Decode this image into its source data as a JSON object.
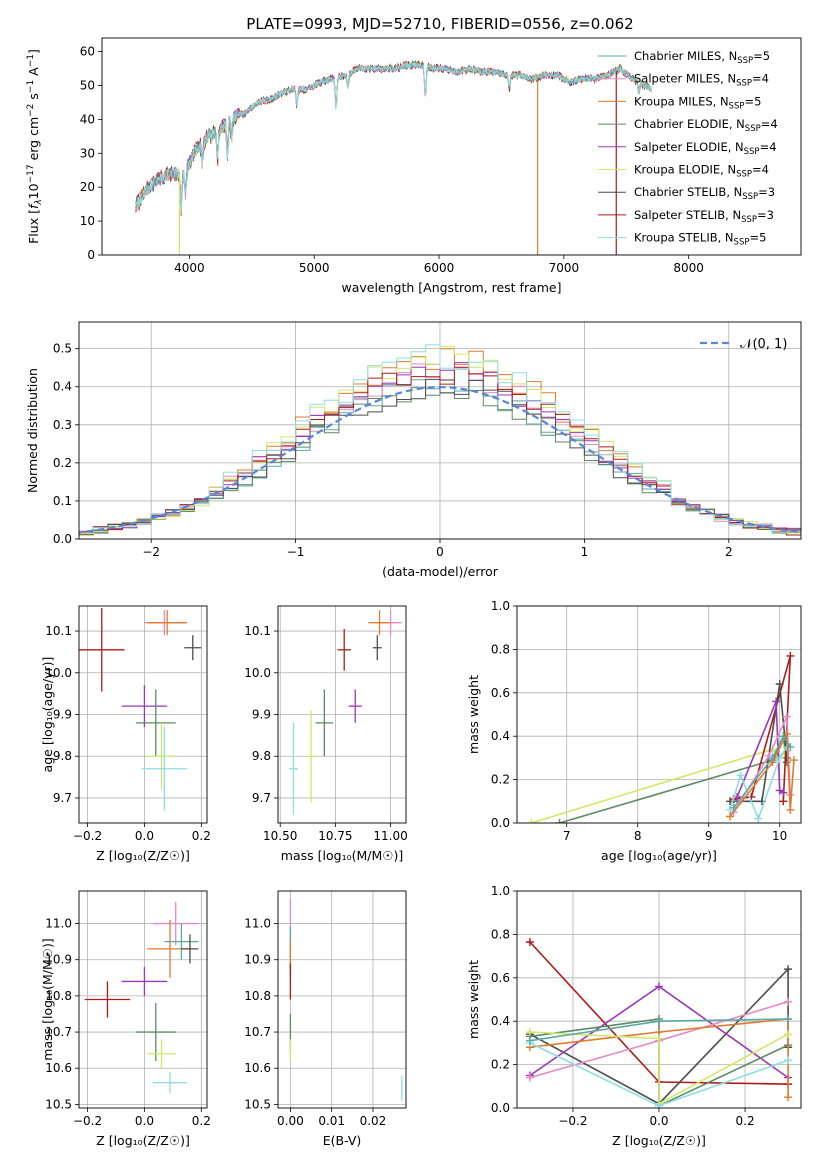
{
  "figure": {
    "title": "PLATE=0993, MJD=52710, FIBERID=0556, z=0.062"
  },
  "colors": {
    "chabrier_miles": "#5aa9a4",
    "salpeter_miles": "#e58ac4",
    "kroupa_miles": "#e07b2e",
    "chabrier_elodie": "#5c8a63",
    "salpeter_elodie": "#9b36b8",
    "kroupa_elodie": "#cfe86a",
    "chabrier_stelib": "#4d4d4d",
    "salpeter_stelib": "#b01a1a",
    "kroupa_stelib": "#8fdde0",
    "gauss": "#5b86d8",
    "grid": "#b0b0b0"
  },
  "chart_data": [
    {
      "id": "spectrum",
      "type": "line",
      "xlabel": "wavelength [Angstrom, rest frame]",
      "ylabel": "Flux [f_λ 10^-17 erg cm^-2 s^-1 A^-1]",
      "xlim": [
        3300,
        8900
      ],
      "ylim": [
        0,
        64
      ],
      "xticks": [
        4000,
        5000,
        6000,
        7000,
        8000
      ],
      "yticks": [
        0,
        10,
        20,
        30,
        40,
        50,
        60
      ],
      "grid": false,
      "legend_position": "top-right",
      "legend": [
        {
          "label": "Chabrier MILES, N",
          "sub": "SSP",
          "suffix": "=5",
          "color_key": "chabrier_miles"
        },
        {
          "label": "Salpeter MILES, N",
          "sub": "SSP",
          "suffix": "=4",
          "color_key": "salpeter_miles"
        },
        {
          "label": "Kroupa MILES, N",
          "sub": "SSP",
          "suffix": "=5",
          "color_key": "kroupa_miles"
        },
        {
          "label": "Chabrier ELODIE, N",
          "sub": "SSP",
          "suffix": "=4",
          "color_key": "chabrier_elodie"
        },
        {
          "label": "Salpeter ELODIE, N",
          "sub": "SSP",
          "suffix": "=4",
          "color_key": "salpeter_elodie"
        },
        {
          "label": "Kroupa ELODIE, N",
          "sub": "SSP",
          "suffix": "=4",
          "color_key": "kroupa_elodie"
        },
        {
          "label": "Chabrier STELIB, N",
          "sub": "SSP",
          "suffix": "=3",
          "color_key": "chabrier_stelib"
        },
        {
          "label": "Salpeter STELIB, N",
          "sub": "SSP",
          "suffix": "=3",
          "color_key": "salpeter_stelib"
        },
        {
          "label": "Kroupa STELIB, N",
          "sub": "SSP",
          "suffix": "=5",
          "color_key": "kroupa_stelib"
        }
      ],
      "continuum": [
        [
          3570,
          14
        ],
        [
          3650,
          19
        ],
        [
          3750,
          22
        ],
        [
          3850,
          24
        ],
        [
          3950,
          24
        ],
        [
          4050,
          31
        ],
        [
          4150,
          35
        ],
        [
          4250,
          37
        ],
        [
          4350,
          41
        ],
        [
          4450,
          42
        ],
        [
          4550,
          45
        ],
        [
          4650,
          46
        ],
        [
          4750,
          48
        ],
        [
          4850,
          49
        ],
        [
          4950,
          49
        ],
        [
          5050,
          51
        ],
        [
          5150,
          52
        ],
        [
          5250,
          53
        ],
        [
          5350,
          55
        ],
        [
          5450,
          55
        ],
        [
          5550,
          55
        ],
        [
          5650,
          55
        ],
        [
          5750,
          56
        ],
        [
          5850,
          56
        ],
        [
          5950,
          55
        ],
        [
          6050,
          55
        ],
        [
          6150,
          54
        ],
        [
          6250,
          55
        ],
        [
          6350,
          54
        ],
        [
          6450,
          54
        ],
        [
          6550,
          53
        ],
        [
          6650,
          53
        ],
        [
          6750,
          52
        ],
        [
          6850,
          53
        ],
        [
          6950,
          53
        ],
        [
          7050,
          51
        ],
        [
          7150,
          52
        ],
        [
          7250,
          52
        ],
        [
          7350,
          53
        ],
        [
          7450,
          55
        ],
        [
          7550,
          52
        ],
        [
          7650,
          50
        ],
        [
          7700,
          49
        ]
      ],
      "absorption_features": [
        [
          3934,
          -10
        ],
        [
          3969,
          -8
        ],
        [
          4102,
          -6
        ],
        [
          4226,
          -8
        ],
        [
          4305,
          -10
        ],
        [
          4340,
          -6
        ],
        [
          4861,
          -5
        ],
        [
          5175,
          -9
        ],
        [
          5270,
          -4
        ],
        [
          5890,
          -9
        ],
        [
          6563,
          -4
        ],
        [
          7600,
          -3
        ]
      ],
      "model_dropouts": [
        {
          "x": 3920,
          "color_key": "kroupa_elodie"
        },
        {
          "x": 6790,
          "color_key": "kroupa_miles"
        },
        {
          "x": 7420,
          "color_key": "salpeter_stelib"
        }
      ]
    },
    {
      "id": "residual-histogram",
      "type": "bar",
      "xlabel": "(data-model)/error",
      "ylabel": "Normed distribution",
      "xlim": [
        -2.5,
        2.5
      ],
      "ylim": [
        0,
        0.57
      ],
      "xticks": [
        -2,
        -1,
        0,
        1,
        2
      ],
      "yticks": [
        0.0,
        0.1,
        0.2,
        0.3,
        0.4,
        0.5
      ],
      "grid": true,
      "legend_position": "top-right",
      "legend": [
        {
          "label": "𝒩(0, 1)",
          "color_key": "gauss"
        }
      ],
      "bin_edges_start": -2.5,
      "bin_width": 0.1,
      "bin_count": 50,
      "series_keys": [
        "chabrier_miles",
        "salpeter_miles",
        "kroupa_miles",
        "chabrier_elodie",
        "salpeter_elodie",
        "kroupa_elodie",
        "chabrier_stelib",
        "salpeter_stelib",
        "kroupa_stelib"
      ]
    },
    {
      "id": "age-vs-Z",
      "type": "scatter",
      "xlabel": "Z [log₁₀(Z/Z☉)]",
      "ylabel": "age  [log₁₀(age/yr)]",
      "xlim": [
        -0.23,
        0.22
      ],
      "ylim": [
        9.64,
        10.16
      ],
      "xticks": [
        -0.2,
        0.0,
        0.2
      ],
      "yticks": [
        9.7,
        9.8,
        9.9,
        10.0,
        10.1
      ],
      "grid": true,
      "points": [
        {
          "x": 0.07,
          "y": 10.12,
          "xerr": 0.07,
          "yerr": 0.03,
          "color_key": "salpeter_miles"
        },
        {
          "x": 0.08,
          "y": 10.12,
          "xerr": 0.07,
          "yerr": 0.03,
          "color_key": "kroupa_miles"
        },
        {
          "x": 0.17,
          "y": 10.06,
          "xerr": 0.03,
          "yerr": 0.03,
          "color_key": "chabrier_stelib"
        },
        {
          "x": -0.15,
          "y": 10.055,
          "xerr": 0.08,
          "yerr": 0.1,
          "color_key": "salpeter_stelib"
        },
        {
          "x": 0.0,
          "y": 9.92,
          "xerr": 0.08,
          "yerr": 0.05,
          "color_key": "salpeter_elodie"
        },
        {
          "x": 0.04,
          "y": 9.88,
          "xerr": 0.07,
          "yerr": 0.08,
          "color_key": "chabrier_elodie"
        },
        {
          "x": 0.06,
          "y": 9.8,
          "xerr": 0.05,
          "yerr": 0.08,
          "color_key": "kroupa_elodie"
        },
        {
          "x": 0.07,
          "y": 9.77,
          "xerr": 0.08,
          "yerr": 0.1,
          "color_key": "kroupa_stelib"
        }
      ]
    },
    {
      "id": "age-vs-mass",
      "type": "scatter",
      "xlabel": "mass [log₁₀(M/M☉)]",
      "ylabel": "",
      "xlim": [
        10.49,
        11.07
      ],
      "ylim": [
        9.64,
        10.16
      ],
      "xticks": [
        10.5,
        10.75,
        11.0
      ],
      "yticks": [
        9.7,
        9.8,
        9.9,
        10.0,
        10.1
      ],
      "grid": true,
      "points": [
        {
          "x": 11.0,
          "y": 10.12,
          "xerr": 0.05,
          "yerr": 0.03,
          "color_key": "salpeter_miles"
        },
        {
          "x": 10.95,
          "y": 10.12,
          "xerr": 0.05,
          "yerr": 0.03,
          "color_key": "kroupa_miles"
        },
        {
          "x": 10.94,
          "y": 10.06,
          "xerr": 0.02,
          "yerr": 0.03,
          "color_key": "chabrier_stelib"
        },
        {
          "x": 10.79,
          "y": 10.055,
          "xerr": 0.03,
          "yerr": 0.05,
          "color_key": "salpeter_stelib"
        },
        {
          "x": 10.84,
          "y": 9.92,
          "xerr": 0.03,
          "yerr": 0.04,
          "color_key": "salpeter_elodie"
        },
        {
          "x": 10.7,
          "y": 9.88,
          "xerr": 0.04,
          "yerr": 0.08,
          "color_key": "chabrier_elodie"
        },
        {
          "x": 10.64,
          "y": 9.8,
          "xerr": 0.02,
          "yerr": 0.11,
          "color_key": "kroupa_elodie"
        },
        {
          "x": 10.56,
          "y": 9.77,
          "xerr": 0.02,
          "yerr": 0.11,
          "color_key": "kroupa_stelib"
        }
      ]
    },
    {
      "id": "mass-vs-Z",
      "type": "scatter",
      "xlabel": "Z [log₁₀(Z/Z☉)]",
      "ylabel": "mass [log₁₀(M/M☉)]",
      "xlim": [
        -0.23,
        0.22
      ],
      "ylim": [
        10.49,
        11.09
      ],
      "xticks": [
        -0.2,
        0.0,
        0.2
      ],
      "yticks": [
        10.5,
        10.6,
        10.7,
        10.8,
        10.9,
        11.0
      ],
      "grid": true,
      "points": [
        {
          "x": 0.11,
          "y": 11.0,
          "xerr": 0.08,
          "yerr": 0.06,
          "color_key": "salpeter_miles"
        },
        {
          "x": 0.09,
          "y": 10.93,
          "xerr": 0.08,
          "yerr": 0.08,
          "color_key": "kroupa_miles"
        },
        {
          "x": 0.13,
          "y": 10.95,
          "xerr": 0.06,
          "yerr": 0.05,
          "color_key": "chabrier_miles"
        },
        {
          "x": 0.16,
          "y": 10.93,
          "xerr": 0.03,
          "yerr": 0.04,
          "color_key": "chabrier_stelib"
        },
        {
          "x": -0.13,
          "y": 10.79,
          "xerr": 0.08,
          "yerr": 0.05,
          "color_key": "salpeter_stelib"
        },
        {
          "x": 0.0,
          "y": 10.84,
          "xerr": 0.08,
          "yerr": 0.04,
          "color_key": "salpeter_elodie"
        },
        {
          "x": 0.04,
          "y": 10.7,
          "xerr": 0.07,
          "yerr": 0.08,
          "color_key": "chabrier_elodie"
        },
        {
          "x": 0.06,
          "y": 10.64,
          "xerr": 0.05,
          "yerr": 0.04,
          "color_key": "kroupa_elodie"
        },
        {
          "x": 0.09,
          "y": 10.56,
          "xerr": 0.06,
          "yerr": 0.03,
          "color_key": "kroupa_stelib"
        }
      ]
    },
    {
      "id": "mass-vs-ebv",
      "type": "scatter",
      "xlabel": "E(B-V)",
      "ylabel": "",
      "xlim": [
        -0.003,
        0.028
      ],
      "ylim": [
        10.49,
        11.09
      ],
      "xticks": [
        0.0,
        0.01,
        0.02
      ],
      "yticks": [
        10.5,
        10.6,
        10.7,
        10.8,
        10.9,
        11.0
      ],
      "grid": true,
      "points": [
        {
          "x": 0.0,
          "y": 11.0,
          "xerr": 0.0,
          "yerr": 0.07,
          "color_key": "salpeter_miles"
        },
        {
          "x": 0.0,
          "y": 10.93,
          "xerr": 0.0,
          "yerr": 0.06,
          "color_key": "chabrier_miles"
        },
        {
          "x": 0.0,
          "y": 10.9,
          "xerr": 0.0,
          "yerr": 0.05,
          "color_key": "kroupa_miles"
        },
        {
          "x": 0.0,
          "y": 10.84,
          "xerr": 0.0,
          "yerr": 0.05,
          "color_key": "salpeter_stelib"
        },
        {
          "x": 0.0,
          "y": 10.7,
          "xerr": 0.0,
          "yerr": 0.05,
          "color_key": "chabrier_elodie"
        },
        {
          "x": 0.0,
          "y": 10.65,
          "xerr": 0.0,
          "yerr": 0.03,
          "color_key": "kroupa_elodie"
        },
        {
          "x": 0.027,
          "y": 10.545,
          "xerr": 0.0,
          "yerr": 0.035,
          "color_key": "kroupa_stelib"
        }
      ]
    },
    {
      "id": "mass-weight-vs-age",
      "type": "line",
      "xlabel": "age  [log₁₀(age/yr)]",
      "ylabel": "mass weight",
      "xlim": [
        6.3,
        10.3
      ],
      "ylim": [
        0,
        1.0
      ],
      "xticks": [
        7,
        8,
        9,
        10
      ],
      "yticks": [
        0.0,
        0.2,
        0.4,
        0.6,
        0.8,
        1.0
      ],
      "grid": true,
      "series": [
        {
          "color_key": "kroupa_elodie",
          "x": [
            6.5,
            9.9,
            10.0,
            10.1
          ],
          "y": [
            0.0,
            0.34,
            0.3,
            0.33
          ]
        },
        {
          "color_key": "chabrier_elodie",
          "x": [
            6.9,
            9.9,
            10.05,
            10.1
          ],
          "y": [
            0.0,
            0.29,
            0.4,
            0.28
          ]
        },
        {
          "color_key": "salpeter_stelib",
          "x": [
            9.35,
            9.6,
            10.15,
            10.05
          ],
          "y": [
            0.11,
            0.12,
            0.77,
            0.1
          ]
        },
        {
          "color_key": "chabrier_stelib",
          "x": [
            9.3,
            9.75,
            10.0,
            10.1
          ],
          "y": [
            0.1,
            0.1,
            0.64,
            0.3
          ]
        },
        {
          "color_key": "salpeter_elodie",
          "x": [
            9.4,
            9.95,
            10.0,
            10.05
          ],
          "y": [
            0.12,
            0.56,
            0.15,
            0.14
          ]
        },
        {
          "color_key": "kroupa_stelib",
          "x": [
            9.3,
            9.45,
            9.7,
            10.0,
            10.1
          ],
          "y": [
            0.06,
            0.22,
            0.02,
            0.3,
            0.35
          ]
        },
        {
          "color_key": "salpeter_miles",
          "x": [
            9.35,
            9.85,
            10.1,
            10.15
          ],
          "y": [
            0.05,
            0.31,
            0.49,
            0.13
          ]
        },
        {
          "color_key": "kroupa_miles",
          "x": [
            9.3,
            9.9,
            10.1,
            10.15,
            10.2
          ],
          "y": [
            0.03,
            0.28,
            0.41,
            0.06,
            0.29
          ]
        },
        {
          "color_key": "chabrier_miles",
          "x": [
            9.35,
            9.9,
            10.05,
            10.15
          ],
          "y": [
            0.07,
            0.3,
            0.4,
            0.35
          ]
        }
      ]
    },
    {
      "id": "mass-weight-vs-Z",
      "type": "line",
      "xlabel": "Z [log₁₀(Z/Z☉)]",
      "ylabel": "mass weight",
      "xlim": [
        -0.33,
        0.33
      ],
      "ylim": [
        0,
        1.0
      ],
      "xticks": [
        -0.2,
        0.0,
        0.2
      ],
      "yticks": [
        0.0,
        0.2,
        0.4,
        0.6,
        0.8,
        1.0
      ],
      "grid": true,
      "series": [
        {
          "color_key": "salpeter_stelib",
          "x": [
            -0.3,
            0.0,
            0.3
          ],
          "y": [
            0.765,
            0.12,
            0.11
          ]
        },
        {
          "color_key": "chabrier_stelib",
          "x": [
            -0.3,
            0.0,
            0.3,
            0.3
          ],
          "y": [
            0.34,
            0.02,
            0.64,
            0.28
          ]
        },
        {
          "color_key": "salpeter_elodie",
          "x": [
            -0.3,
            0.0,
            0.3
          ],
          "y": [
            0.15,
            0.56,
            0.14
          ]
        },
        {
          "color_key": "chabrier_elodie",
          "x": [
            -0.3,
            0.0,
            0.0,
            0.3
          ],
          "y": [
            0.33,
            0.41,
            0.01,
            0.29
          ]
        },
        {
          "color_key": "salpeter_miles",
          "x": [
            -0.3,
            0.0,
            0.3
          ],
          "y": [
            0.14,
            0.31,
            0.49
          ]
        },
        {
          "color_key": "kroupa_miles",
          "x": [
            -0.3,
            0.0,
            0.3,
            0.3
          ],
          "y": [
            0.28,
            0.35,
            0.41,
            0.05
          ]
        },
        {
          "color_key": "kroupa_elodie",
          "x": [
            -0.3,
            0.0,
            0.0,
            0.3
          ],
          "y": [
            0.35,
            0.32,
            0.02,
            0.34
          ]
        },
        {
          "color_key": "kroupa_stelib",
          "x": [
            -0.3,
            0.0,
            0.3
          ],
          "y": [
            0.3,
            0.01,
            0.22
          ]
        },
        {
          "color_key": "chabrier_miles",
          "x": [
            -0.3,
            0.0,
            0.3
          ],
          "y": [
            0.31,
            0.4,
            0.41
          ]
        }
      ]
    }
  ]
}
